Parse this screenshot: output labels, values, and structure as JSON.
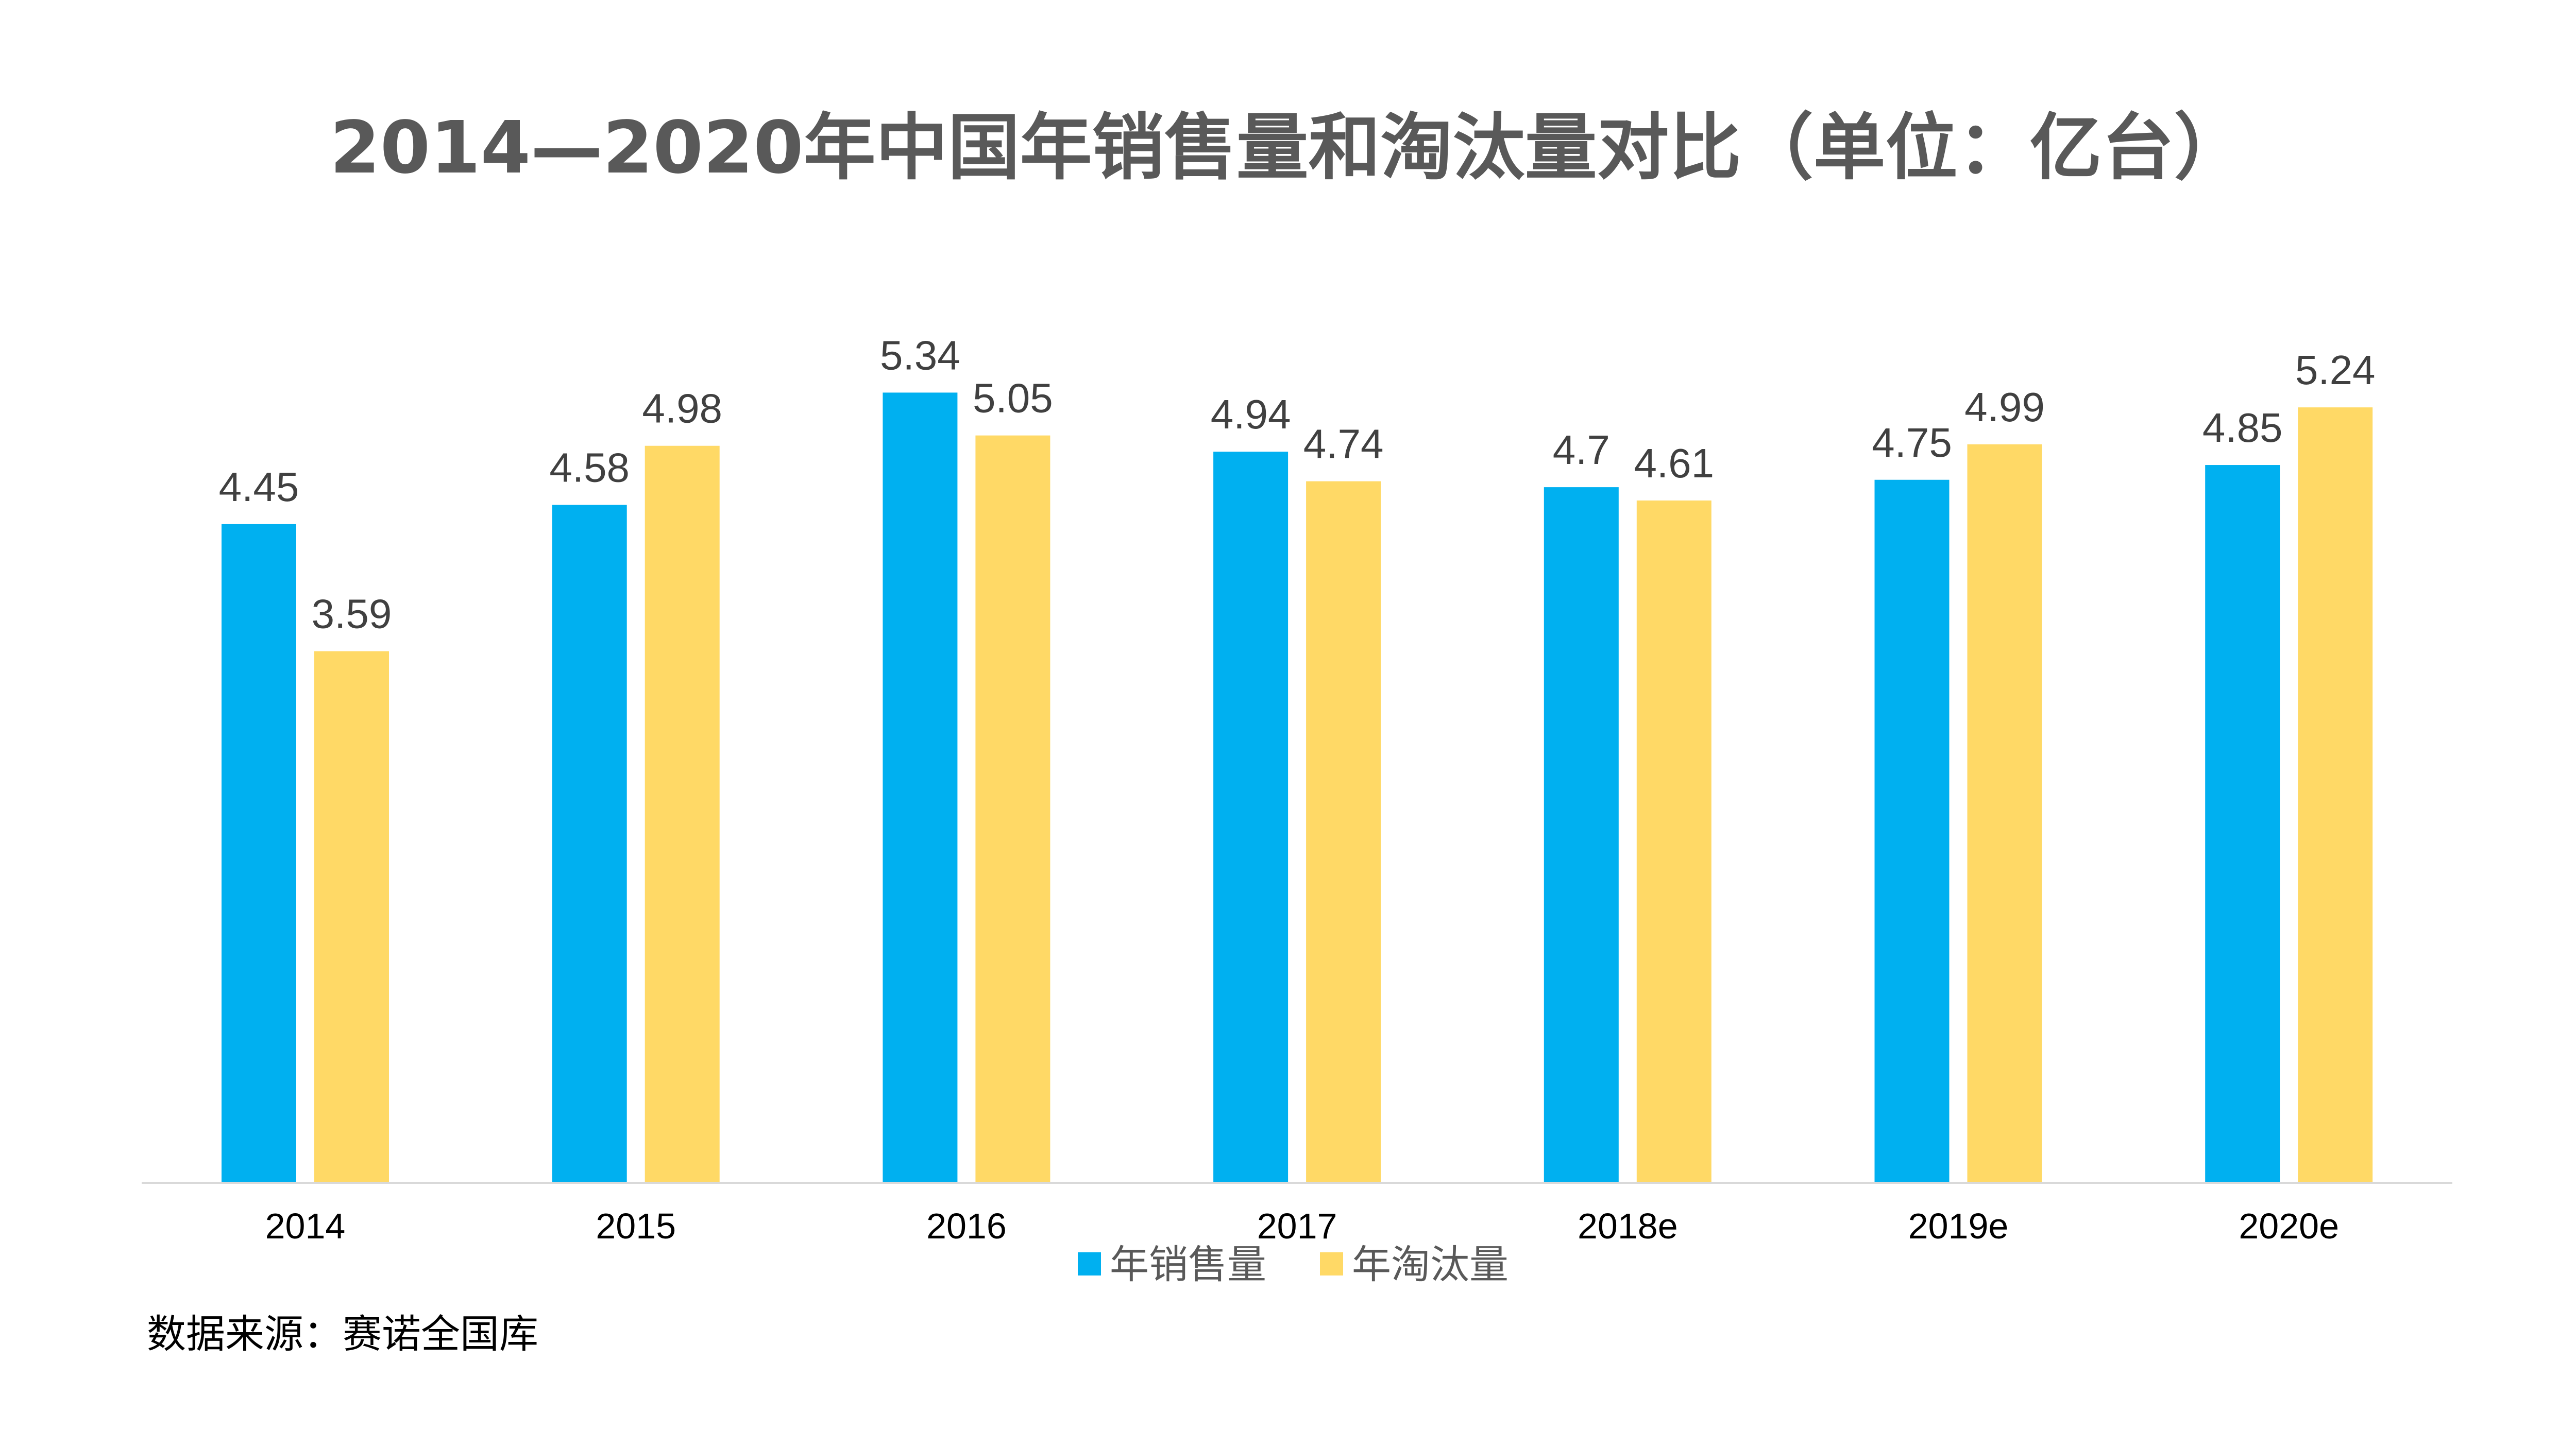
{
  "chart_data": {
    "type": "bar",
    "title": "2014—2020年中国年销售量和淘汰量对比（单位：亿台）",
    "categories": [
      "2014",
      "2015",
      "2016",
      "2017",
      "2018e",
      "2019e",
      "2020e"
    ],
    "series": [
      {
        "name": "年销售量",
        "color": "#00B0F0",
        "values": [
          4.45,
          4.58,
          5.34,
          4.94,
          4.7,
          4.75,
          4.85
        ]
      },
      {
        "name": "年淘汰量",
        "color": "#FFD966",
        "values": [
          3.59,
          4.98,
          5.05,
          4.74,
          4.61,
          4.99,
          5.24
        ]
      }
    ],
    "ylim": [
      0,
      6
    ],
    "grid": false,
    "legend": "bottom",
    "data_labels": true
  },
  "source": "数据来源：赛诺全国库"
}
